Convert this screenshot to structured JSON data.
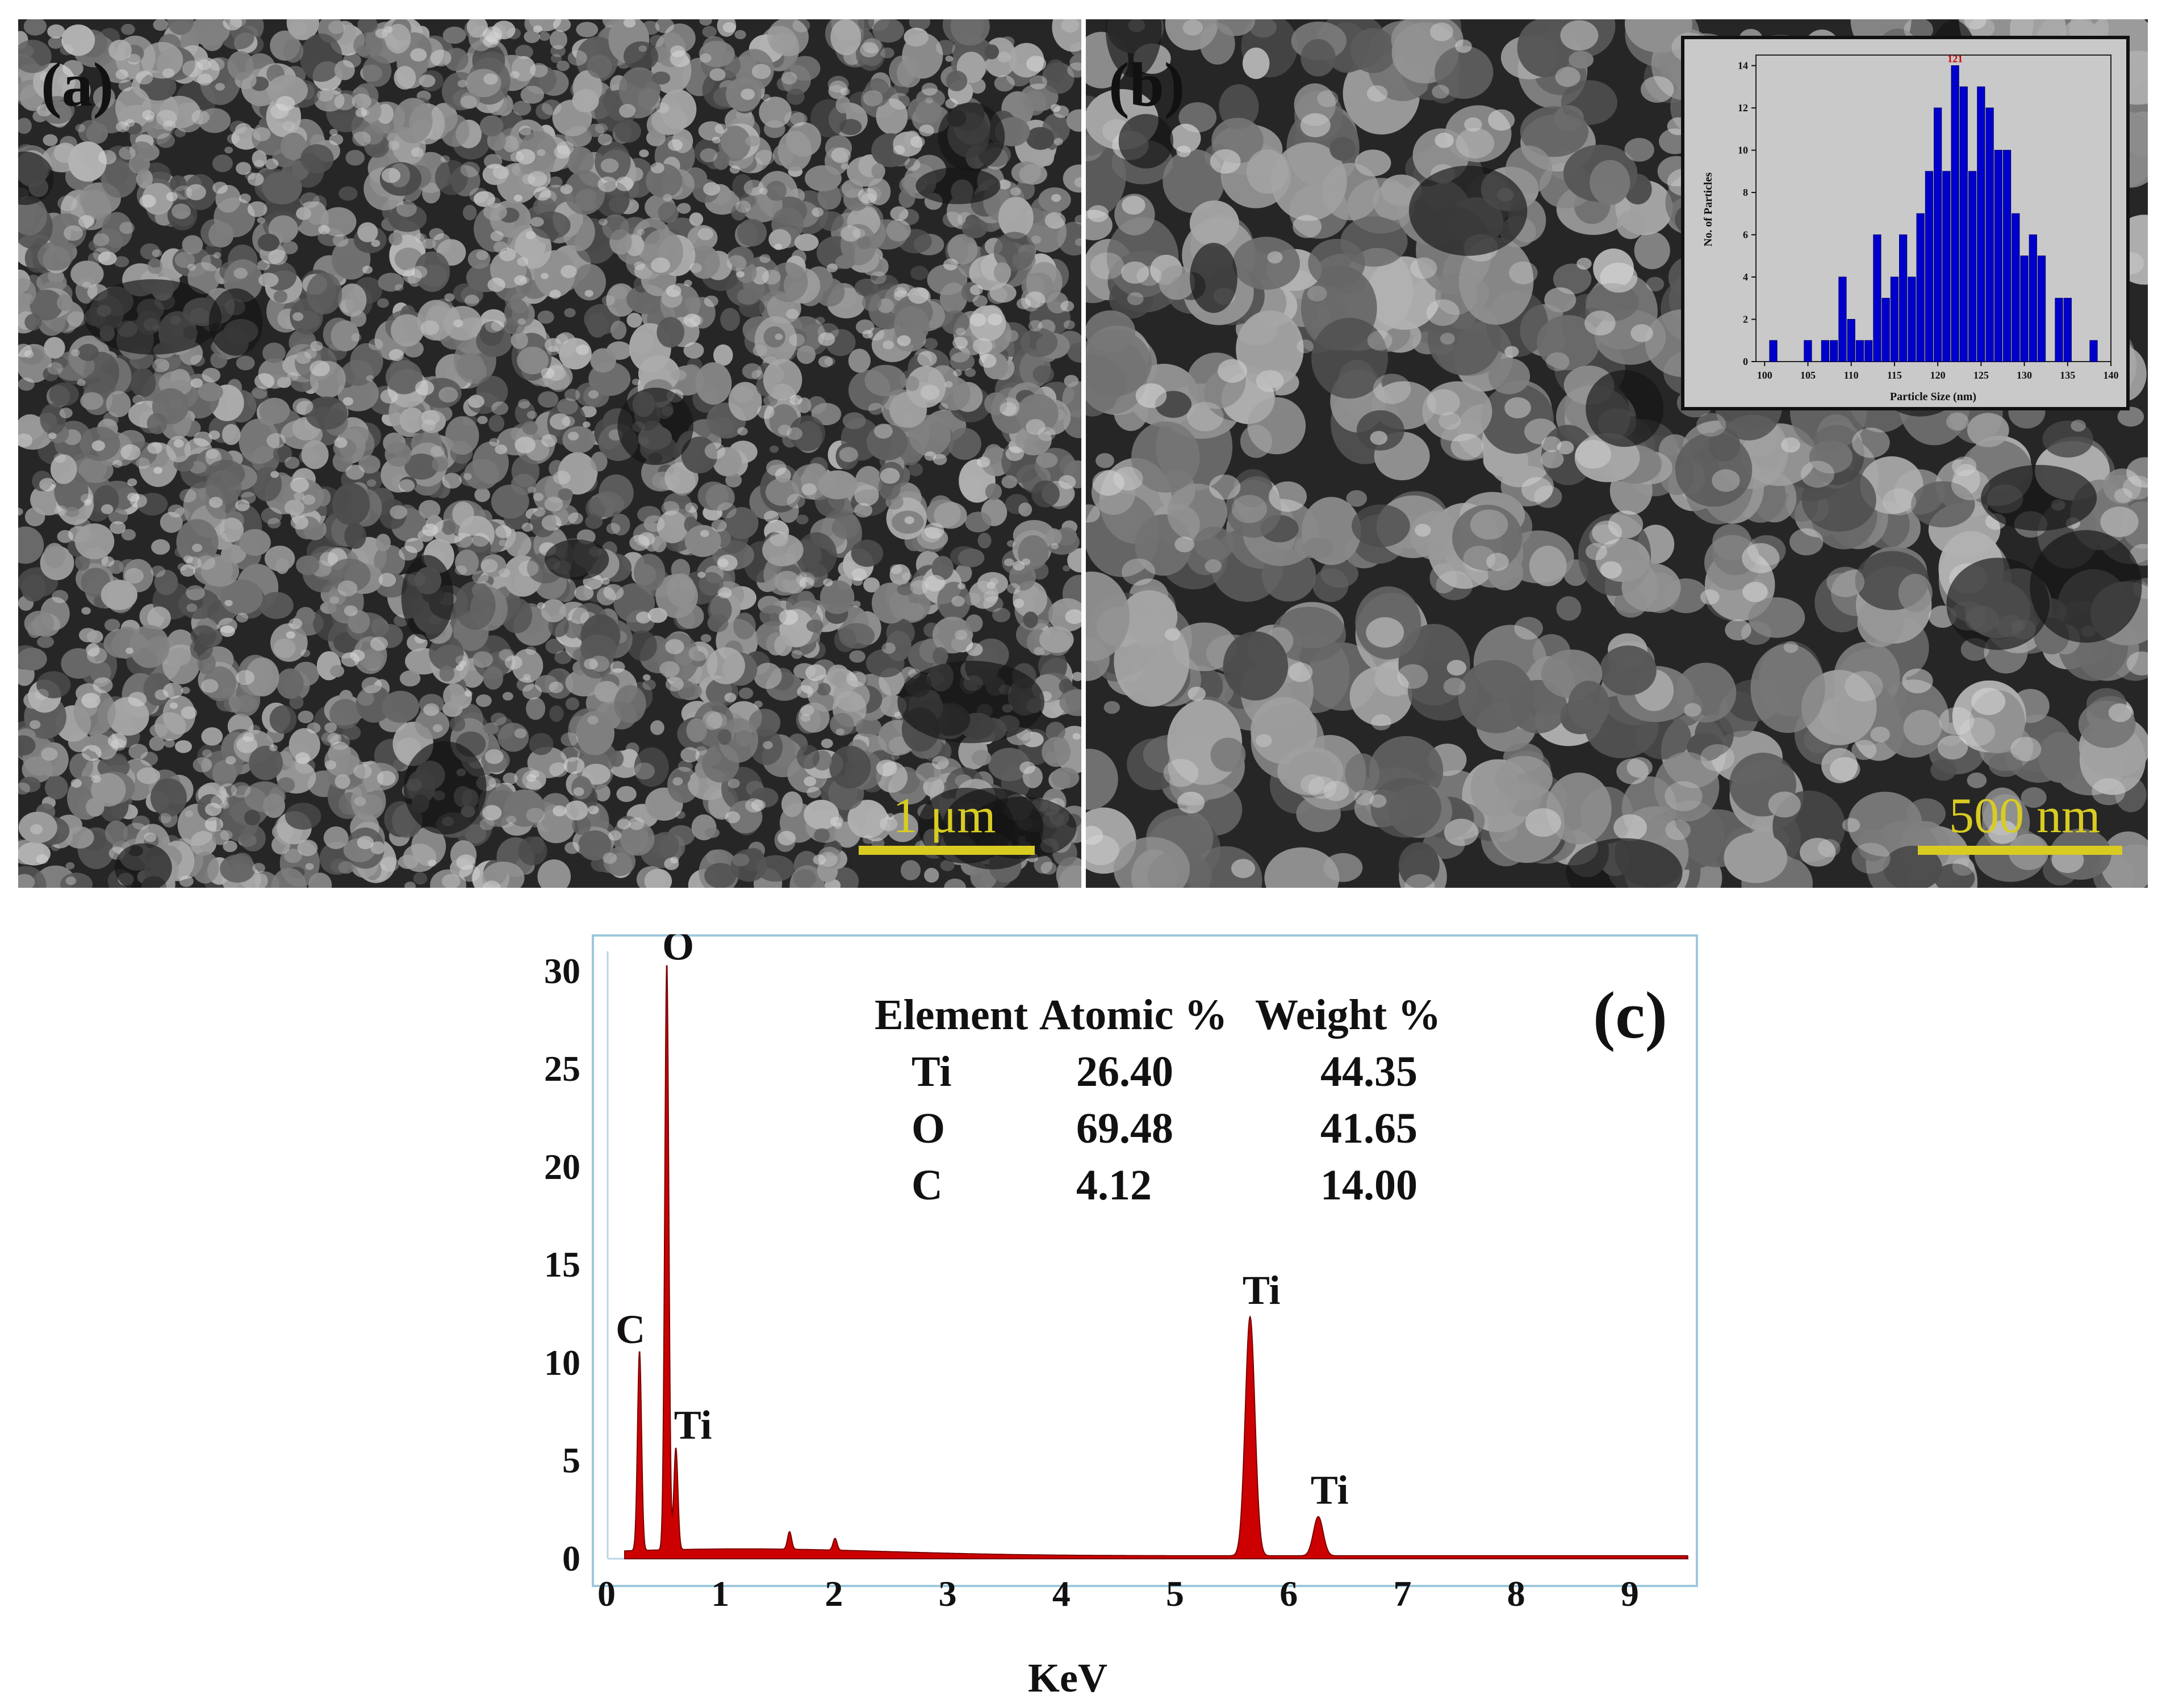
{
  "panels": {
    "a": {
      "label": "(a)",
      "scale_bar_text": "1 μm"
    },
    "b": {
      "label": "(b)",
      "scale_bar_text": "500 nm"
    }
  },
  "colors": {
    "scale_bar": "#d8cc22",
    "histogram_bar": "#0000cc",
    "eds_fill": "#cc0000",
    "eds_frame": "#9cc8dc"
  },
  "chart_data": [
    {
      "type": "bar",
      "title": "",
      "peak_label": "121",
      "xlabel": "Particle Size (nm)",
      "ylabel": "No. of Particles",
      "x_ticks": [
        "100",
        "105",
        "110",
        "115",
        "120",
        "125",
        "130",
        "135",
        "140"
      ],
      "y_ticks": [
        "0",
        "2",
        "4",
        "6",
        "8",
        "10",
        "12",
        "14"
      ],
      "xlim": [
        99,
        140
      ],
      "ylim": [
        0,
        14.5
      ],
      "x": [
        101,
        105,
        107,
        108,
        109,
        110,
        111,
        112,
        113,
        114,
        115,
        116,
        117,
        118,
        119,
        120,
        121,
        122,
        123,
        124,
        125,
        126,
        127,
        128,
        129,
        130,
        131,
        132,
        134,
        135,
        138
      ],
      "values": [
        1,
        1,
        1,
        1,
        4,
        2,
        1,
        1,
        6,
        3,
        4,
        6,
        4,
        7,
        9,
        12,
        9,
        14,
        13,
        9,
        13,
        12,
        10,
        10,
        7,
        5,
        6,
        5,
        3,
        3,
        1
      ]
    },
    {
      "type": "line",
      "panel_label": "(c)",
      "xlabel": "KeV",
      "ylabel": "",
      "x_ticks": [
        "0",
        "1",
        "2",
        "3",
        "4",
        "5",
        "6",
        "7",
        "8",
        "9"
      ],
      "y_ticks": [
        "0",
        "5",
        "10",
        "15",
        "20",
        "25",
        "30"
      ],
      "xlim": [
        0,
        9.5
      ],
      "ylim": [
        0,
        31
      ],
      "peaks": [
        {
          "label": "C",
          "x": 0.28,
          "y": 10.2
        },
        {
          "label": "O",
          "x": 0.52,
          "y": 30
        },
        {
          "label": "Ti",
          "x": 0.6,
          "y": 5.2
        },
        {
          "label": "Ti",
          "x": 5.65,
          "y": 12.2
        },
        {
          "label": "Ti",
          "x": 6.25,
          "y": 2.0
        }
      ],
      "minor_peaks": [
        {
          "x": 1.6,
          "y": 0.9
        },
        {
          "x": 2.0,
          "y": 0.6
        }
      ],
      "table": {
        "headers": [
          "Element",
          "Atomic %",
          "Weight %"
        ],
        "rows": [
          [
            "Ti",
            "26.40",
            "44.35"
          ],
          [
            "O",
            "69.48",
            "41.65"
          ],
          [
            "C",
            "4.12",
            "14.00"
          ]
        ]
      }
    }
  ]
}
